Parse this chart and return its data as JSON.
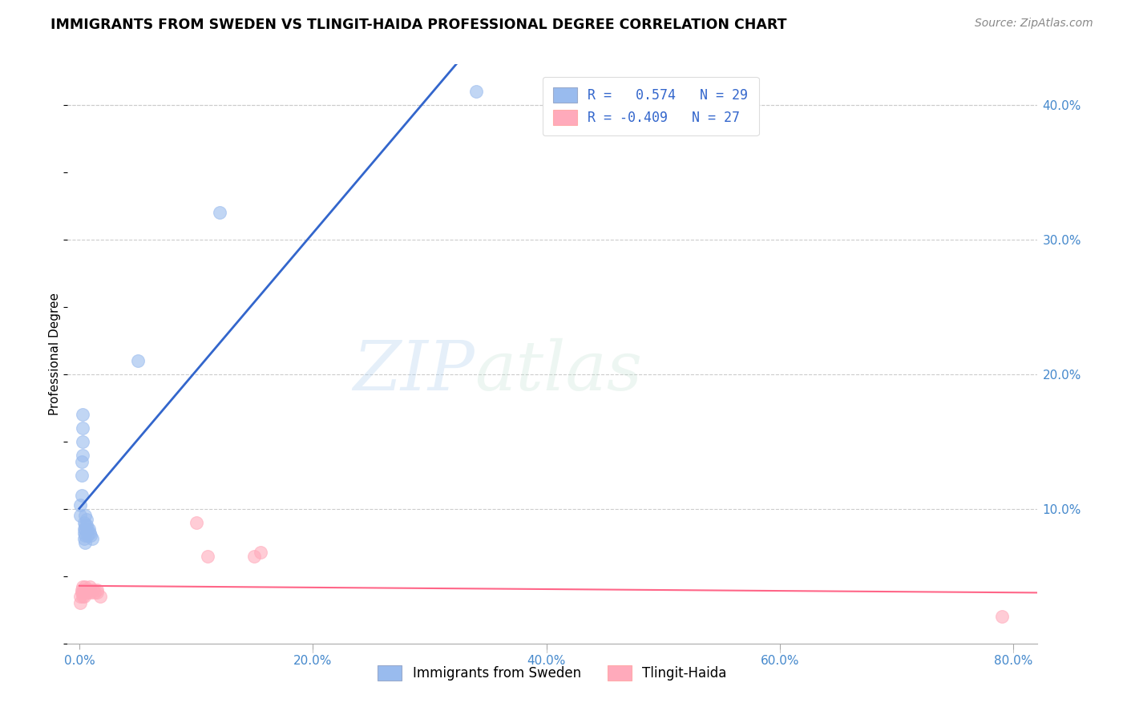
{
  "title": "IMMIGRANTS FROM SWEDEN VS TLINGIT-HAIDA PROFESSIONAL DEGREE CORRELATION CHART",
  "source": "Source: ZipAtlas.com",
  "ylabel": "Professional Degree",
  "watermark_zip": "ZIP",
  "watermark_atlas": "atlas",
  "legend_line1": "R =   0.574   N = 29",
  "legend_line2": "R = -0.409   N = 27",
  "xlim": [
    -0.01,
    0.82
  ],
  "ylim": [
    0.0,
    0.43
  ],
  "xticks": [
    0.0,
    0.2,
    0.4,
    0.6,
    0.8
  ],
  "xtick_labels": [
    "0.0%",
    "20.0%",
    "40.0%",
    "60.0%",
    "80.0%"
  ],
  "yticks_right": [
    0.1,
    0.2,
    0.3,
    0.4
  ],
  "ytick_labels_right": [
    "10.0%",
    "20.0%",
    "30.0%",
    "40.0%"
  ],
  "blue_color": "#99BBEE",
  "pink_color": "#FFAABB",
  "blue_line_color": "#3366CC",
  "pink_line_color": "#FF6688",
  "tick_label_color": "#4488CC",
  "label_blue": "Immigrants from Sweden",
  "label_pink": "Tlingit-Haida",
  "blue_x": [
    0.001,
    0.001,
    0.002,
    0.002,
    0.002,
    0.003,
    0.003,
    0.003,
    0.003,
    0.004,
    0.004,
    0.004,
    0.004,
    0.005,
    0.005,
    0.005,
    0.005,
    0.005,
    0.006,
    0.006,
    0.007,
    0.007,
    0.008,
    0.009,
    0.01,
    0.011,
    0.05,
    0.12,
    0.34
  ],
  "blue_y": [
    0.095,
    0.103,
    0.11,
    0.125,
    0.135,
    0.14,
    0.15,
    0.16,
    0.17,
    0.09,
    0.085,
    0.082,
    0.078,
    0.095,
    0.088,
    0.085,
    0.08,
    0.075,
    0.092,
    0.088,
    0.085,
    0.08,
    0.085,
    0.082,
    0.08,
    0.078,
    0.21,
    0.32,
    0.41
  ],
  "pink_x": [
    0.001,
    0.001,
    0.002,
    0.002,
    0.003,
    0.003,
    0.003,
    0.004,
    0.004,
    0.004,
    0.005,
    0.005,
    0.006,
    0.007,
    0.008,
    0.009,
    0.01,
    0.012,
    0.013,
    0.015,
    0.015,
    0.018,
    0.1,
    0.11,
    0.15,
    0.155,
    0.79
  ],
  "pink_y": [
    0.03,
    0.035,
    0.038,
    0.04,
    0.042,
    0.038,
    0.035,
    0.04,
    0.038,
    0.035,
    0.042,
    0.038,
    0.04,
    0.038,
    0.04,
    0.042,
    0.038,
    0.04,
    0.038,
    0.04,
    0.038,
    0.035,
    0.09,
    0.065,
    0.065,
    0.068,
    0.02
  ],
  "background_color": "#ffffff",
  "grid_color": "#cccccc"
}
